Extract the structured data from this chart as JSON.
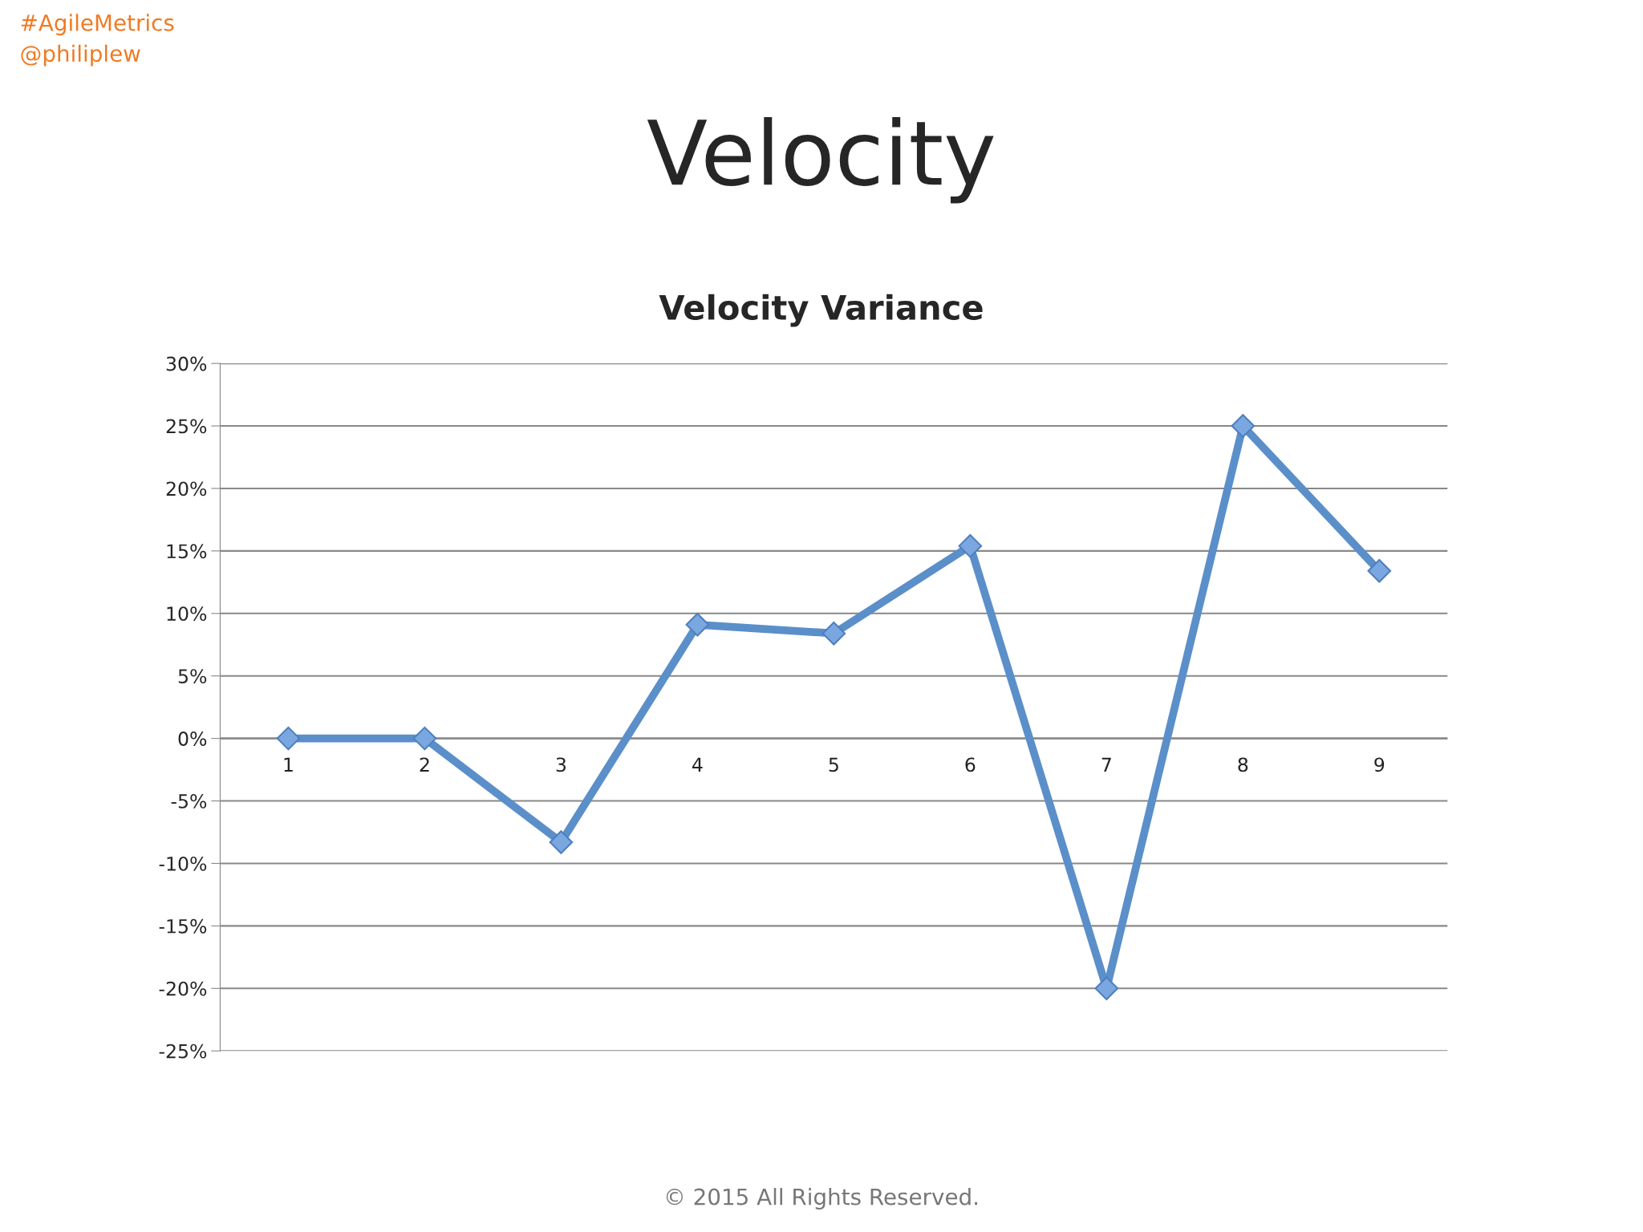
{
  "chart_data": {
    "type": "line",
    "title": "Velocity",
    "subtitle": "Velocity Variance",
    "categories": [
      "1",
      "2",
      "3",
      "4",
      "5",
      "6",
      "7",
      "8",
      "9"
    ],
    "series": [
      {
        "color": "#5b8fc9",
        "values": [
          0,
          0,
          -8.3,
          9.1,
          8.4,
          15.4,
          -20,
          25,
          13.4
        ]
      }
    ],
    "ylim": [
      -25,
      30
    ],
    "yticks": [
      {
        "value": -25,
        "label": "-25%"
      },
      {
        "value": -20,
        "label": "-20%"
      },
      {
        "value": -15,
        "label": "-15%"
      },
      {
        "value": -10,
        "label": "-10%"
      },
      {
        "value": -5,
        "label": "-5%"
      },
      {
        "value": 0,
        "label": "0%"
      },
      {
        "value": 5,
        "label": "5%"
      },
      {
        "value": 10,
        "label": "10%"
      },
      {
        "value": 15,
        "label": "15%"
      },
      {
        "value": 20,
        "label": "20%"
      },
      {
        "value": 25,
        "label": "25%"
      },
      {
        "value": 30,
        "label": "30%"
      }
    ],
    "grid": "y",
    "marker": "diamond",
    "line_style": "solid",
    "annotations": [
      "#AgileMetrics",
      "@philiplew",
      "© 2015 All Rights Reserved."
    ]
  }
}
